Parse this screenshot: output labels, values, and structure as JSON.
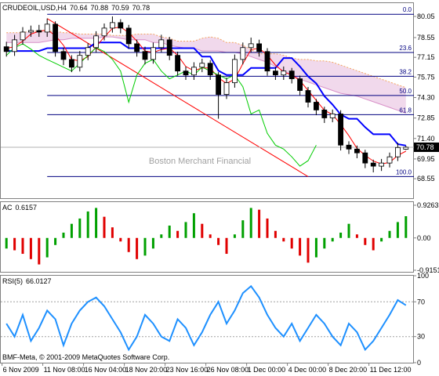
{
  "chart_data": [
    {
      "type": "candlestick",
      "title": "CRUDEOIL,USD,H4",
      "open": [
        77.9,
        77.56,
        78.39,
        78.94,
        79.05,
        78.94,
        79.5,
        77.56,
        77.0,
        76.45,
        77.29,
        77.84,
        78.67,
        79.22,
        79.61,
        79.22,
        78.11,
        77.56,
        77.0,
        77.84,
        78.39,
        77.29,
        76.18,
        75.9,
        76.45,
        76.73,
        75.9,
        74.52,
        75.35,
        77.0,
        77.84,
        78.11,
        77.56,
        76.18,
        75.9,
        76.18,
        75.63,
        74.8,
        73.97,
        73.42,
        72.86,
        73.14,
        70.93,
        70.65,
        70.38,
        69.66,
        69.44,
        69.66,
        70.1,
        70.64
      ],
      "high": [
        78.25,
        78.74,
        79.29,
        79.4,
        79.45,
        79.9,
        79.7,
        77.85,
        77.3,
        77.6,
        78.15,
        79.0,
        79.55,
        80.05,
        79.85,
        79.45,
        78.4,
        77.9,
        78.2,
        78.75,
        78.6,
        77.55,
        76.5,
        76.8,
        77.05,
        76.95,
        76.1,
        75.7,
        77.35,
        78.2,
        78.55,
        78.4,
        77.8,
        76.45,
        76.5,
        76.4,
        75.85,
        75.05,
        74.2,
        73.65,
        73.45,
        73.4,
        71.2,
        70.9,
        70.6,
        69.9,
        69.95,
        70.4,
        71.1,
        70.88
      ],
      "low": [
        77.2,
        77.25,
        78.05,
        78.6,
        78.6,
        78.6,
        77.2,
        76.6,
        76.1,
        76.15,
        76.95,
        77.5,
        78.35,
        78.9,
        78.85,
        77.75,
        77.2,
        76.65,
        76.7,
        77.5,
        76.95,
        75.85,
        75.55,
        75.55,
        76.1,
        75.55,
        72.8,
        74.2,
        75.0,
        76.65,
        77.5,
        77.2,
        75.85,
        75.55,
        75.55,
        75.3,
        74.45,
        73.6,
        73.05,
        72.5,
        72.55,
        70.55,
        70.3,
        70.0,
        69.3,
        69.0,
        69.1,
        69.35,
        69.8,
        70.59
      ],
      "close": [
        77.56,
        78.39,
        78.94,
        79.05,
        78.94,
        79.5,
        77.56,
        77.0,
        76.45,
        77.29,
        77.84,
        78.67,
        79.22,
        79.61,
        79.22,
        78.11,
        77.56,
        77.0,
        77.84,
        78.39,
        77.29,
        76.18,
        75.9,
        76.45,
        76.73,
        75.9,
        74.52,
        75.35,
        77.0,
        77.84,
        78.11,
        77.56,
        76.18,
        75.9,
        76.18,
        75.63,
        74.8,
        73.97,
        73.42,
        72.86,
        73.14,
        70.93,
        70.65,
        70.38,
        69.66,
        69.44,
        69.66,
        70.1,
        70.76,
        70.78
      ],
      "up_color": "#ffffff",
      "down_color": "#000000",
      "ylim": [
        67.17,
        80.99
      ],
      "yticks": [
        80.05,
        78.55,
        77.15,
        75.75,
        {
          "value": 74.3,
          "label": "74.30"
        },
        72.85,
        {
          "value": 71.4,
          "label": "71.40"
        },
        69.95,
        68.55
      ],
      "lines": [
        {
          "color": "#0000ff",
          "width": 2,
          "values": [
            77.6,
            77.6,
            77.6,
            77.6,
            77.6,
            77.8,
            77.8,
            77.8,
            77.8,
            77.8,
            77.8,
            78.2,
            78.2,
            78.2,
            78.2,
            77.8,
            77.8,
            77.8,
            77.8,
            77.8,
            77.8,
            77.8,
            77.8,
            77.8,
            77.2,
            77.2,
            76.2,
            75.9,
            75.9,
            75.9,
            76.4,
            76.4,
            76.4,
            76.4,
            77.1,
            77.1,
            76.5,
            75.8,
            75.3,
            74.4,
            73.8,
            73.1,
            72.8,
            72.8,
            72.2,
            71.7,
            71.7,
            71.7,
            71.0,
            70.9
          ]
        },
        {
          "color": "#ff0000",
          "width": 1,
          "values": [
            77.8,
            77.9,
            78.3,
            78.8,
            79.0,
            79.1,
            78.7,
            78.0,
            77.0,
            76.9,
            77.2,
            77.9,
            78.6,
            79.2,
            79.3,
            78.9,
            78.3,
            77.6,
            77.5,
            77.7,
            77.8,
            77.3,
            76.5,
            76.2,
            76.4,
            76.4,
            75.7,
            75.3,
            75.6,
            76.7,
            77.7,
            77.8,
            77.3,
            76.6,
            76.1,
            75.9,
            75.5,
            74.8,
            74.1,
            73.4,
            73.1,
            72.4,
            71.6,
            70.7,
            70.2,
            69.8,
            69.6,
            69.7,
            70.2,
            70.5
          ]
        },
        {
          "color": "#00cc00",
          "width": 1,
          "values": [
            77.29,
            77.84,
            78.11,
            77.73,
            77.29,
            77.0,
            76.73,
            76.45,
            76.18,
            76.73,
            77.29,
            77.84,
            77.56,
            77.0,
            76.18,
            73.97,
            75.9,
            76.73,
            77.0,
            76.18,
            75.63,
            75.9,
            76.18,
            75.9,
            76.45,
            76.18,
            75.9,
            75.63,
            75.9,
            75.07,
            73.14,
            73.42,
            71.76,
            70.93,
            70.65,
            70.1,
            69.44,
            69.83,
            70.93,
            null,
            null,
            null,
            null,
            null,
            null,
            null,
            null,
            null,
            null,
            null
          ]
        }
      ],
      "cloud": {
        "fill": "#e8c0e0",
        "color_a": "#f4a460",
        "color_b": "#d890c8",
        "span_a": [
          78.9,
          78.9,
          78.9,
          79.0,
          79.0,
          79.0,
          79.0,
          78.9,
          78.9,
          78.8,
          78.8,
          78.8,
          78.8,
          78.7,
          78.7,
          78.7,
          78.8,
          78.8,
          78.8,
          78.6,
          78.5,
          78.3,
          78.3,
          78.3,
          78.5,
          78.6,
          78.5,
          78.2,
          78.2,
          78.0,
          77.7,
          77.4,
          77.4,
          77.4,
          77.3,
          77.1,
          77.0,
          77.0,
          76.9,
          76.9,
          76.8,
          76.6,
          76.4,
          76.2,
          76.0,
          75.8,
          75.6,
          75.4,
          75.2,
          75.0
        ],
        "span_b": [
          78.2,
          78.2,
          78.2,
          78.2,
          78.2,
          78.3,
          78.4,
          78.4,
          78.5,
          78.5,
          78.5,
          78.5,
          78.6,
          78.6,
          78.5,
          78.4,
          78.4,
          78.4,
          78.2,
          78.2,
          78.0,
          77.9,
          77.8,
          77.8,
          77.6,
          77.6,
          77.6,
          77.5,
          77.5,
          77.4,
          77.2,
          77.0,
          76.8,
          76.5,
          76.2,
          75.9,
          75.6,
          75.4,
          75.2,
          75.0,
          74.8,
          74.6,
          74.5,
          74.4,
          74.2,
          74.0,
          73.8,
          73.6,
          73.4,
          73.2
        ]
      },
      "trendline": {
        "color": "#ff0000",
        "x": [
          5,
          37
        ],
        "y": [
          79.9,
          68.7
        ]
      },
      "fib_levels": {
        "color": "#000080",
        "labels": [
          "0.0",
          "23.6",
          "38.2",
          "50.0",
          "61.8",
          "100.0"
        ],
        "prices": [
          80.2,
          77.49,
          75.81,
          74.45,
          73.09,
          68.7
        ]
      },
      "watermark": "Boston Merchant Financial"
    },
    {
      "type": "bar",
      "title": "AC",
      "values": [
        -0.3,
        -0.35,
        -0.45,
        -0.6,
        -0.75,
        -0.55,
        -0.2,
        0.15,
        0.4,
        0.55,
        0.75,
        0.85,
        0.6,
        0.3,
        -0.1,
        -0.4,
        -0.6,
        -0.5,
        -0.3,
        0.1,
        0.35,
        0.2,
        0.45,
        0.7,
        0.4,
        0.1,
        -0.2,
        -0.45,
        0.1,
        0.5,
        0.85,
        0.8,
        0.55,
        0.2,
        -0.1,
        -0.3,
        -0.5,
        -0.7,
        -0.55,
        -0.3,
        -0.1,
        0.15,
        0.4,
        0.1,
        -0.2,
        -0.35,
        -0.1,
        0.2,
        0.45,
        0.6157
      ],
      "up_color": "#00a000",
      "down_color": "#e00000",
      "ylim": [
        -0.9151,
        0.9263
      ],
      "yticks": [
        0.9263,
        {
          "value": 0,
          "label": "0.00"
        },
        -0.9151
      ]
    },
    {
      "type": "line",
      "title": "RSI(5)",
      "color": "#1e90ff",
      "values": [
        45,
        30,
        55,
        25,
        40,
        60,
        50,
        20,
        45,
        60,
        70,
        75,
        65,
        50,
        35,
        15,
        30,
        55,
        45,
        30,
        25,
        50,
        40,
        20,
        35,
        55,
        70,
        45,
        60,
        80,
        88,
        75,
        55,
        40,
        30,
        45,
        25,
        40,
        55,
        45,
        30,
        20,
        45,
        35,
        15,
        25,
        40,
        55,
        72,
        66.0127
      ],
      "ylim": [
        0,
        100
      ],
      "yticks": [
        100,
        70,
        30,
        0
      ],
      "grid": true,
      "categories": [
        null,
        "6 Nov 2009",
        null,
        null,
        null,
        null,
        "11 Nov 08:00",
        null,
        null,
        null,
        null,
        "16 Nov 04:00",
        null,
        null,
        null,
        null,
        "18 Nov 20:00",
        null,
        null,
        null,
        null,
        "23 Nov 16:00",
        null,
        null,
        null,
        null,
        "26 Nov 08:00",
        null,
        null,
        null,
        null,
        "1 Dec 00:00",
        null,
        null,
        null,
        null,
        "4 Dec 00:00",
        null,
        null,
        null,
        null,
        "8 Dec 20:00",
        null,
        null,
        null,
        null,
        "11 Dec 12:00",
        null,
        null,
        null
      ],
      "copyright": "BMF-Meta, © 2001-2009 MetaQuotes Software Corp."
    }
  ]
}
